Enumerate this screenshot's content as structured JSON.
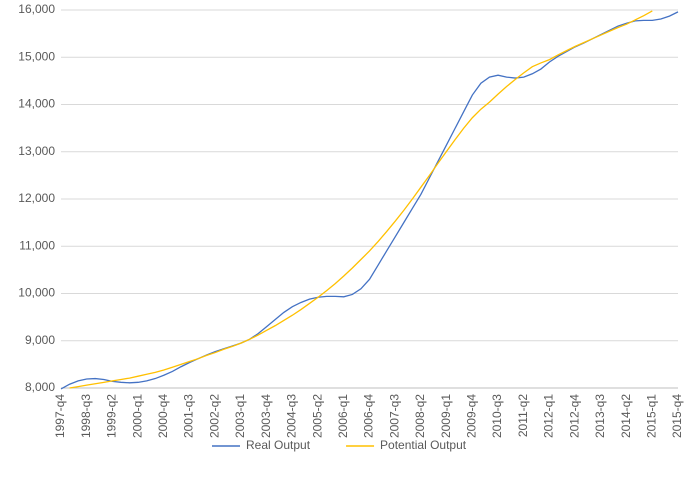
{
  "chart_data": {
    "type": "line",
    "categories": [
      "1997-q4",
      null,
      null,
      "1998-q3",
      null,
      null,
      "1999-q2",
      null,
      null,
      "2000-q1",
      null,
      null,
      "2000-q4",
      null,
      null,
      "2001-q3",
      null,
      null,
      "2002-q2",
      null,
      null,
      "2003-q1",
      null,
      null,
      "2003-q4",
      null,
      null,
      "2004-q3",
      null,
      null,
      "2005-q2",
      null,
      null,
      "2006-q1",
      null,
      null,
      "2006-q4",
      null,
      null,
      "2007-q3",
      null,
      null,
      "2008-q2",
      null,
      null,
      "2009-q1",
      null,
      null,
      "2009-q4",
      null,
      null,
      "2010-q3",
      null,
      null,
      "2011-q2",
      null,
      null,
      "2012-q1",
      null,
      null,
      "2012-q4",
      null,
      null,
      "2013-q3",
      null,
      null,
      "2014-q2",
      null,
      null,
      "2015-q1",
      null,
      null,
      "2015-q4"
    ],
    "series": [
      {
        "name": "Real Output",
        "color": "#4472c4",
        "values": [
          7980,
          8080,
          8150,
          8190,
          8200,
          8180,
          8140,
          8120,
          8110,
          8120,
          8150,
          8200,
          8270,
          8350,
          8450,
          8540,
          8620,
          8700,
          8770,
          8830,
          8890,
          8950,
          9030,
          9150,
          9300,
          9450,
          9600,
          9720,
          9810,
          9880,
          9920,
          9940,
          9940,
          9930,
          9980,
          10100,
          10300,
          10600,
          10900,
          11200,
          11500,
          11800,
          12100,
          12450,
          12800,
          13150,
          13500,
          13850,
          14200,
          14450,
          14580,
          14620,
          14580,
          14560,
          14580,
          14650,
          14750,
          14900,
          15020,
          15120,
          15220,
          15300,
          15390,
          15480,
          15570,
          15660,
          15720,
          15770,
          15780,
          15780,
          15810,
          15870,
          15960
        ]
      },
      {
        "name": "Potential Output",
        "color": "#ffc000",
        "values": [
          null,
          8000,
          8030,
          8060,
          8090,
          8120,
          8150,
          8180,
          8210,
          8250,
          8290,
          8330,
          8380,
          8440,
          8500,
          8560,
          8620,
          8690,
          8750,
          8820,
          8880,
          8950,
          9030,
          9120,
          9220,
          9320,
          9430,
          9540,
          9660,
          9790,
          9920,
          10060,
          10210,
          10370,
          10540,
          10720,
          10900,
          11100,
          11310,
          11530,
          11760,
          12000,
          12250,
          12500,
          12760,
          13010,
          13260,
          13500,
          13720,
          13900,
          14050,
          14220,
          14380,
          14530,
          14670,
          14800,
          14880,
          14950,
          15050,
          15140,
          15230,
          15310,
          15390,
          15470,
          15550,
          15630,
          15700,
          15790,
          15880,
          15980,
          null,
          null,
          null
        ]
      }
    ],
    "ylim": [
      8000,
      16000
    ],
    "yticks": [
      {
        "value": 8000,
        "label": "8,000"
      },
      {
        "value": 9000,
        "label": "9,000"
      },
      {
        "value": 10000,
        "label": "10,000"
      },
      {
        "value": 11000,
        "label": "11,000"
      },
      {
        "value": 12000,
        "label": "12,000"
      },
      {
        "value": 13000,
        "label": "13,000"
      },
      {
        "value": 14000,
        "label": "14,000"
      },
      {
        "value": 15000,
        "label": "15,000"
      },
      {
        "value": 16000,
        "label": "16,000"
      }
    ],
    "grid": true,
    "legend": "bottom"
  }
}
